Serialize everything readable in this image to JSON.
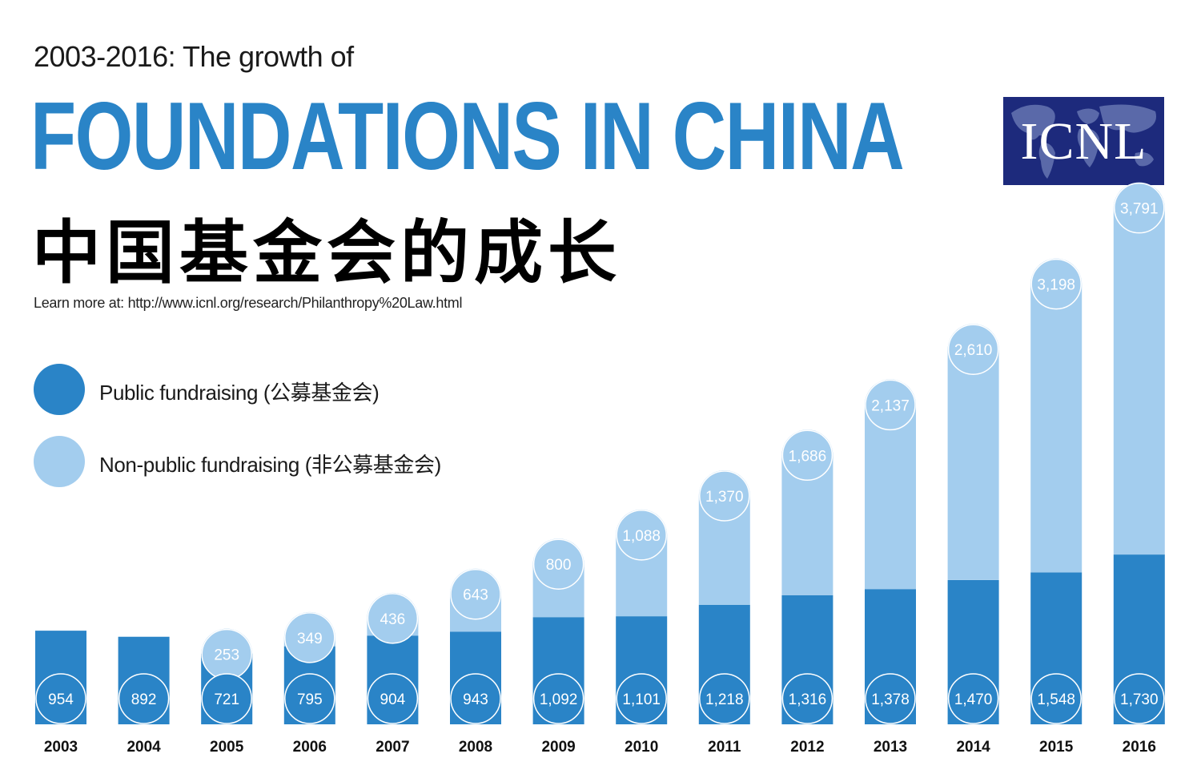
{
  "header": {
    "subtitle": "2003-2016: The growth of",
    "title": "FOUNDATIONS IN CHINA",
    "title_cn": "中国基金会的成长",
    "learn_more": "Learn more at: http://www.icnl.org/research/Philanthropy%20Law.html"
  },
  "logo": {
    "text": "ICNL"
  },
  "colors": {
    "public": "#2a84c7",
    "nonpublic": "#a3cdee",
    "title": "#2a84c7",
    "logo_bg": "#1d2a7c"
  },
  "chart_data": {
    "type": "bar",
    "stacked": true,
    "categories": [
      "2003",
      "2004",
      "2005",
      "2006",
      "2007",
      "2008",
      "2009",
      "2010",
      "2011",
      "2012",
      "2013",
      "2014",
      "2015",
      "2016"
    ],
    "series": [
      {
        "name": "Public fundraising (公募基金会)",
        "values": [
          954,
          892,
          721,
          795,
          904,
          943,
          1092,
          1101,
          1218,
          1316,
          1378,
          1470,
          1548,
          1730
        ],
        "labels": [
          "954",
          "892",
          "721",
          "795",
          "904",
          "943",
          "1,092",
          "1,101",
          "1,218",
          "1,316",
          "1,378",
          "1,470",
          "1,548",
          "1,730"
        ]
      },
      {
        "name": "Non-public fundraising (非公募基金会)",
        "values": [
          null,
          null,
          253,
          349,
          436,
          643,
          800,
          1088,
          1370,
          1686,
          2137,
          2610,
          3198,
          3791
        ],
        "labels": [
          "",
          "",
          "253",
          "349",
          "436",
          "643",
          "800",
          "1,088",
          "1,370",
          "1,686",
          "2,137",
          "2,610",
          "3,198",
          "3,791"
        ]
      }
    ],
    "legend": "left",
    "grid": false
  }
}
